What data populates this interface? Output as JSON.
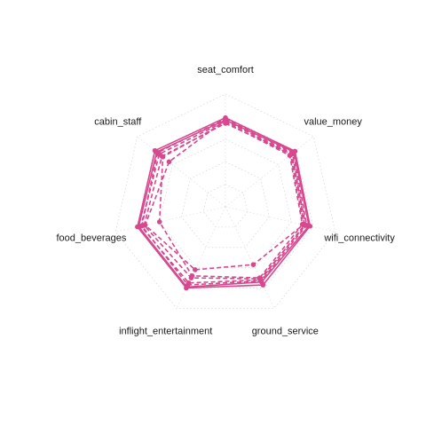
{
  "chart_data": {
    "type": "radar",
    "axes": [
      "seat_comfort",
      "value_money",
      "wifi_connectivity",
      "ground_service",
      "inflight_entertainment",
      "food_beverages",
      "cabin_staff"
    ],
    "range": [
      0,
      5
    ],
    "grid_levels": [
      1,
      2,
      3,
      4,
      5
    ],
    "grid": true,
    "series_color": "#d6498f",
    "series": [
      {
        "values": [
          3.95,
          3.95,
          3.85,
          3.85,
          4.0,
          4.0,
          4.0
        ],
        "dashed": false
      },
      {
        "values": [
          3.85,
          3.9,
          3.8,
          3.7,
          3.95,
          3.95,
          3.9
        ],
        "dashed": false
      },
      {
        "values": [
          3.9,
          3.85,
          3.7,
          3.65,
          3.85,
          3.8,
          3.85
        ],
        "dashed": true
      },
      {
        "values": [
          3.8,
          3.8,
          3.6,
          3.6,
          3.75,
          3.85,
          3.75
        ],
        "dashed": true
      },
      {
        "values": [
          3.7,
          3.75,
          3.65,
          3.55,
          3.5,
          3.7,
          3.6
        ],
        "dashed": true
      },
      {
        "values": [
          3.85,
          3.7,
          3.55,
          2.85,
          3.1,
          3.65,
          3.2
        ],
        "dashed": true
      },
      {
        "values": [
          3.75,
          3.65,
          3.5,
          3.5,
          3.4,
          3.0,
          3.55
        ],
        "dashed": true
      }
    ]
  }
}
